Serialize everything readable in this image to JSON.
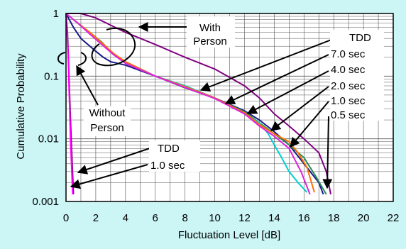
{
  "chart_data": {
    "type": "line",
    "xlabel": "Fluctuation Level [dB]",
    "ylabel": "Cumulative Probability",
    "xlim": [
      0,
      22
    ],
    "ylim": [
      0.001,
      1
    ],
    "yscale": "log",
    "grid": true,
    "x_ticks": [
      "0",
      "2",
      "4",
      "6",
      "8",
      "10",
      "12",
      "14",
      "16",
      "18",
      "20",
      "22"
    ],
    "y_ticks": [
      "1",
      "0.1",
      "0.01",
      "0.001"
    ],
    "series_colors": {
      "TDD": "#800080",
      "7.0 sec": "#1a1a8a",
      "4.0 sec": "#2e8b57",
      "2.0 sec": "#00d0d0",
      "1.0 sec": "#ff7000",
      "0.5 sec": "#e020e0"
    },
    "series": [
      {
        "name": "TDD",
        "color": "#800080",
        "x": [
          0,
          1.0,
          2.0,
          3.0,
          4.0,
          6.0,
          8.0,
          10.0,
          12.0,
          13.0,
          14.0,
          15.0,
          16.0,
          17.0,
          17.5,
          17.8
        ],
        "y": [
          1.0,
          1.0,
          0.85,
          0.65,
          0.5,
          0.32,
          0.2,
          0.13,
          0.07,
          0.045,
          0.025,
          0.016,
          0.01,
          0.006,
          0.003,
          0.0013
        ]
      },
      {
        "name": "7.0 sec",
        "color": "#1a1a8a",
        "x": [
          0,
          0.5,
          1.0,
          2.0,
          2.5,
          3.0,
          4.0,
          6.0,
          8.0,
          10.0,
          12.0,
          13.0,
          14.0,
          15.0,
          16.0,
          17.0,
          17.3
        ],
        "y": [
          1.0,
          0.6,
          0.4,
          0.25,
          0.2,
          0.17,
          0.15,
          0.1,
          0.07,
          0.045,
          0.028,
          0.02,
          0.013,
          0.008,
          0.004,
          0.002,
          0.0013
        ]
      },
      {
        "name": "4.0 sec",
        "color": "#2e8b57",
        "x": [
          0,
          0.8,
          1.6,
          2.4,
          3.2,
          4.0,
          6.0,
          8.0,
          10.0,
          12.0,
          13.0,
          14.0,
          15.0,
          16.0,
          16.8,
          17.5
        ],
        "y": [
          1.0,
          0.7,
          0.5,
          0.35,
          0.22,
          0.17,
          0.1,
          0.065,
          0.045,
          0.027,
          0.018,
          0.012,
          0.008,
          0.005,
          0.0025,
          0.0013
        ]
      },
      {
        "name": "2.0 sec",
        "color": "#00d0d0",
        "x": [
          0,
          0.8,
          1.6,
          2.4,
          3.2,
          4.0,
          6.0,
          8.0,
          10.0,
          12.0,
          13.0,
          13.6,
          14.0,
          14.5,
          15.0,
          15.6,
          16.2
        ],
        "y": [
          1.0,
          0.7,
          0.48,
          0.33,
          0.22,
          0.17,
          0.1,
          0.07,
          0.045,
          0.025,
          0.018,
          0.012,
          0.008,
          0.005,
          0.003,
          0.002,
          0.0014
        ]
      },
      {
        "name": "1.0 sec",
        "color": "#ff7000",
        "x": [
          0,
          0.8,
          1.6,
          2.4,
          3.2,
          4.0,
          6.0,
          8.0,
          10.0,
          12.0,
          13.0,
          14.0,
          15.0,
          15.6,
          16.2,
          16.7
        ],
        "y": [
          1.0,
          0.7,
          0.5,
          0.34,
          0.23,
          0.17,
          0.1,
          0.068,
          0.045,
          0.026,
          0.017,
          0.012,
          0.009,
          0.006,
          0.0035,
          0.0014
        ]
      },
      {
        "name": "0.5 sec",
        "color": "#e020e0",
        "x": [
          0,
          0.8,
          1.6,
          2.4,
          3.2,
          4.0,
          6.0,
          8.0,
          10.0,
          12.0,
          13.0,
          14.0,
          15.0,
          15.8,
          16.4
        ],
        "y": [
          1.0,
          0.7,
          0.47,
          0.32,
          0.22,
          0.16,
          0.1,
          0.066,
          0.044,
          0.025,
          0.016,
          0.011,
          0.007,
          0.003,
          0.0013
        ]
      },
      {
        "name": "Without Person TDD",
        "color": "#800080",
        "x": [
          0,
          0.1,
          0.2,
          0.3,
          0.4,
          0.5
        ],
        "y": [
          1.0,
          0.5,
          0.1,
          0.02,
          0.005,
          0.0013
        ]
      },
      {
        "name": "Without Person 1.0 sec",
        "color": "#ff00ff",
        "x": [
          0,
          0.15,
          0.3,
          0.45
        ],
        "y": [
          1.0,
          0.2,
          0.01,
          0.0013
        ]
      }
    ],
    "annotations": {
      "with_person_1": "With",
      "with_person_2": "Person",
      "without_person_1": "Without",
      "without_person_2": "Person",
      "tdd_top": "TDD",
      "s70": "7.0 sec",
      "s40": "4.0 sec",
      "s20": "2.0 sec",
      "s10": "1.0 sec",
      "s05": "0.5 sec",
      "tdd_bottom": "TDD",
      "s10_bottom": "1.0 sec"
    }
  }
}
